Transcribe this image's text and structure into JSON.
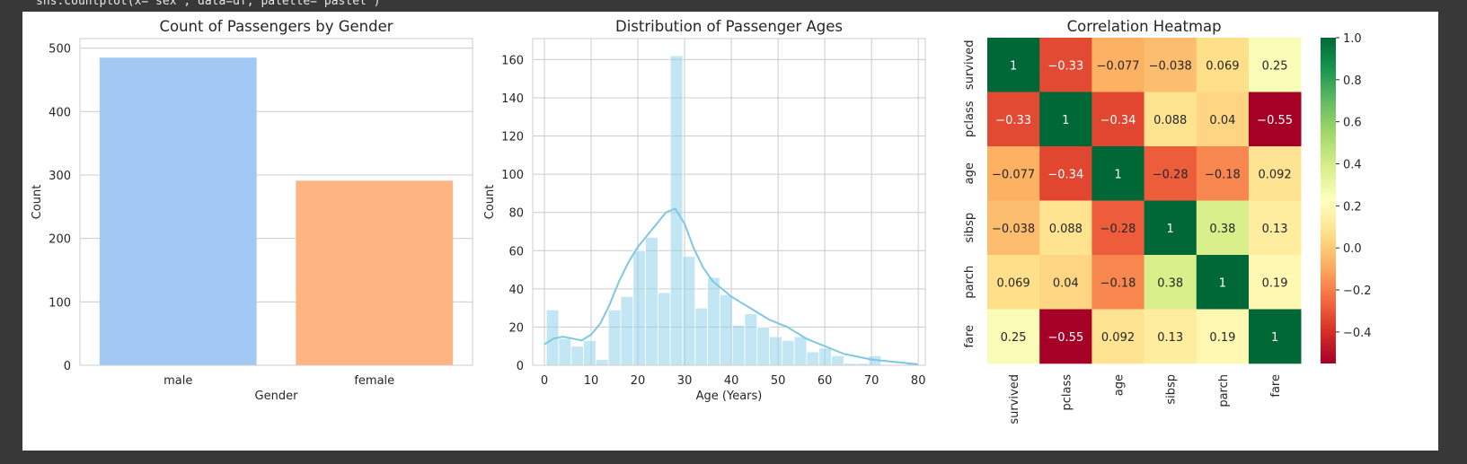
{
  "code_line": "sns.countplot(x='sex', data=df, palette='pastel')",
  "chart_data": [
    {
      "type": "bar",
      "title": "Count of Passengers by Gender",
      "xlabel": "Gender",
      "ylabel": "Count",
      "categories": [
        "male",
        "female"
      ],
      "values": [
        485,
        291
      ],
      "colors": [
        "#a1c9f4",
        "#ffb482"
      ],
      "ylim": [
        0,
        515
      ],
      "yticks": [
        0,
        100,
        200,
        300,
        400,
        500
      ],
      "grid": true
    },
    {
      "type": "bar",
      "subtype": "histogram_with_kde",
      "title": "Distribution of Passenger Ages",
      "xlabel": "Age (Years)",
      "ylabel": "Count",
      "bar_color": "#87ceeb",
      "line_color": "#7ec8e3",
      "bin_edges": [
        0.42,
        3.07,
        5.72,
        8.38,
        11.03,
        13.68,
        16.33,
        18.99,
        21.64,
        24.29,
        26.94,
        29.6,
        32.25,
        34.9,
        37.55,
        40.21,
        42.86,
        45.51,
        48.16,
        50.82,
        53.47,
        56.12,
        58.77,
        61.42,
        64.08,
        66.73,
        69.38,
        72.03,
        74.69,
        77.34,
        79.99
      ],
      "values": [
        29,
        14,
        10,
        13,
        3,
        29,
        36,
        60,
        67,
        38,
        162,
        57,
        30,
        46,
        37,
        21,
        27,
        20,
        15,
        13,
        15,
        7,
        9,
        5,
        1,
        1,
        5,
        0,
        0,
        1
      ],
      "kde_x": [
        0,
        2,
        4,
        6,
        8,
        10,
        12,
        14,
        16,
        18,
        20,
        22,
        24,
        26,
        28,
        30,
        32,
        34,
        36,
        38,
        40,
        42,
        44,
        46,
        48,
        50,
        52,
        54,
        56,
        58,
        60,
        62,
        64,
        66,
        68,
        70,
        72,
        74,
        76,
        78,
        80
      ],
      "kde_y": [
        11,
        14,
        15,
        14,
        13,
        16,
        22,
        32,
        44,
        54,
        62,
        68,
        74,
        80,
        82,
        74,
        61,
        51,
        44,
        40,
        36,
        33,
        30,
        27,
        24,
        22,
        20,
        17,
        14,
        12,
        10,
        8,
        6,
        5,
        4,
        3,
        2.5,
        2,
        1.5,
        1,
        0.5
      ],
      "xlim": [
        -2.5,
        81.5
      ],
      "ylim": [
        0,
        171
      ],
      "xticks": [
        0,
        10,
        20,
        30,
        40,
        50,
        60,
        70,
        80
      ],
      "yticks": [
        0,
        20,
        40,
        60,
        80,
        100,
        120,
        140,
        160
      ],
      "grid": true
    },
    {
      "type": "heatmap",
      "title": "Correlation Heatmap",
      "labels": [
        "survived",
        "pclass",
        "age",
        "sibsp",
        "parch",
        "fare"
      ],
      "matrix": [
        [
          1,
          -0.33,
          -0.077,
          -0.038,
          0.069,
          0.25
        ],
        [
          -0.33,
          1,
          -0.34,
          0.088,
          0.04,
          -0.55
        ],
        [
          -0.077,
          -0.34,
          1,
          -0.28,
          -0.18,
          0.092
        ],
        [
          -0.038,
          0.088,
          -0.28,
          1,
          0.38,
          0.13
        ],
        [
          0.069,
          0.04,
          -0.18,
          0.38,
          1,
          0.19
        ],
        [
          0.25,
          -0.55,
          0.092,
          0.13,
          0.19,
          1
        ]
      ],
      "colormap": "RdYlGn",
      "colorbar": {
        "range": [
          -0.55,
          1.0
        ],
        "ticks": [
          1.0,
          0.8,
          0.6,
          0.4,
          0.2,
          0.0,
          -0.2,
          -0.4
        ],
        "tick_labels": [
          "1.0",
          "0.8",
          "0.6",
          "0.4",
          "0.2",
          "0.0",
          "−0.2",
          "−0.4"
        ]
      }
    }
  ]
}
